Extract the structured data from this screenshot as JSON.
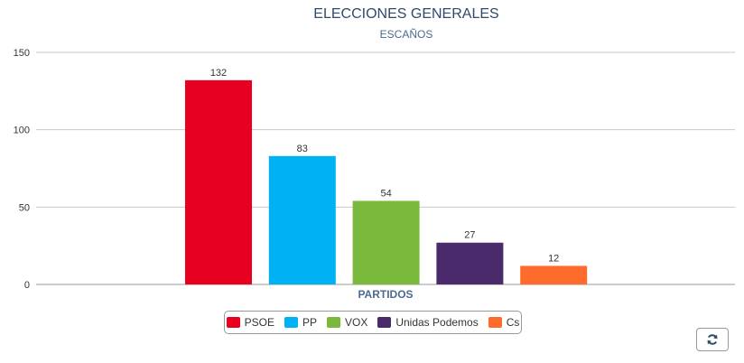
{
  "chart_data": {
    "type": "bar",
    "title": "ELECCIONES GENERALES",
    "subtitle": "ESCAÑOS",
    "xlabel": "PARTIDOS",
    "ylabel": "",
    "ylim": [
      0,
      150
    ],
    "yticks": [
      0,
      50,
      100,
      150
    ],
    "grid": true,
    "legend_position": "bottom",
    "categories": [
      "PSOE",
      "PP",
      "VOX",
      "Unidas Podemos",
      "Cs"
    ],
    "values": [
      132,
      83,
      54,
      27,
      12
    ],
    "colors": [
      "#e7001f",
      "#00b2f3",
      "#7bb93d",
      "#4a2a6b",
      "#ff6b2b"
    ]
  },
  "toolbar": {
    "reload_icon": "refresh-icon"
  }
}
